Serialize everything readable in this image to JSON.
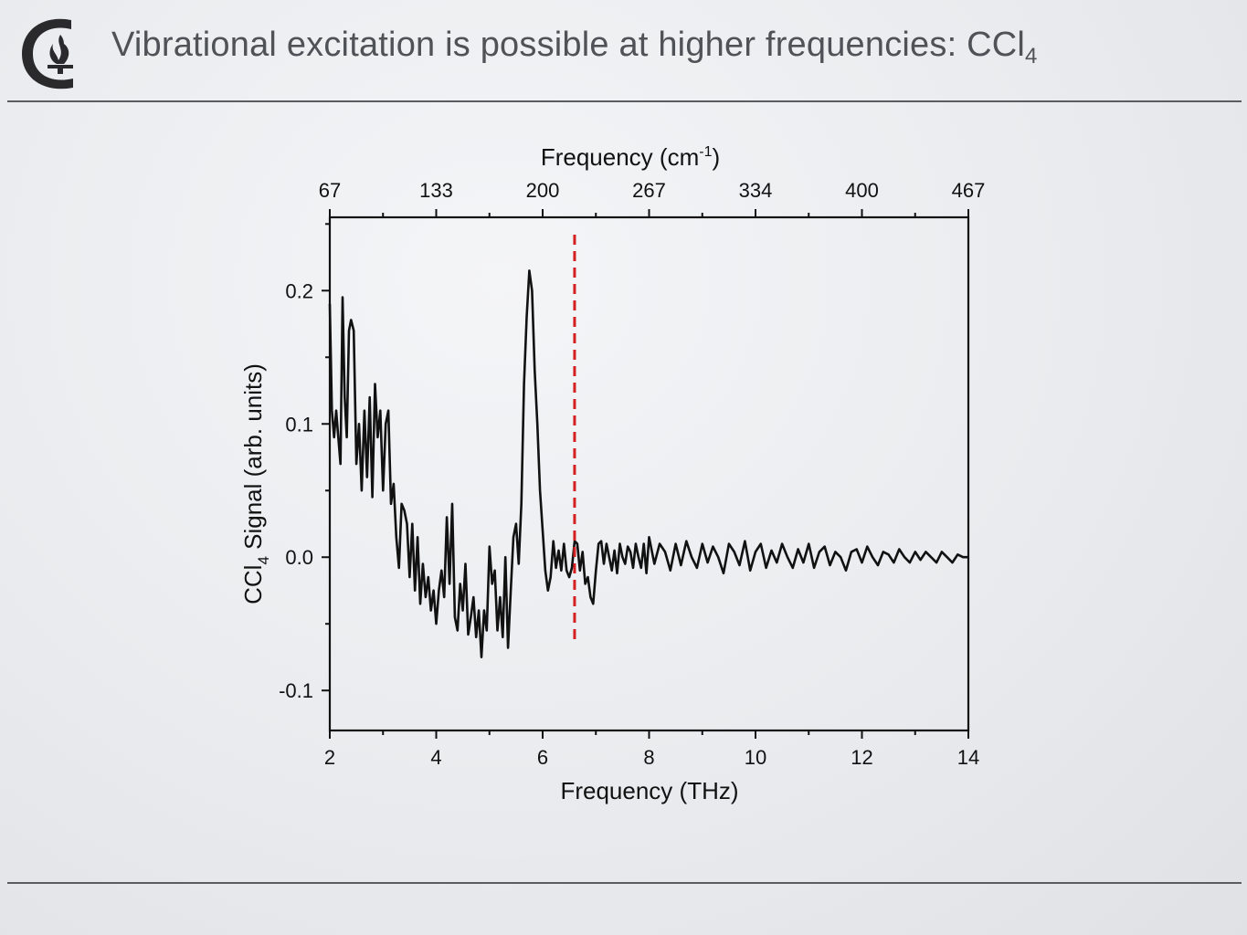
{
  "slide": {
    "title": "Vibrational excitation is possible at higher frequencies: CCl",
    "title_subscript": "4",
    "logo": "caltech-flame-c-logo"
  },
  "colors": {
    "title": "#4f5257",
    "rules": "#5a5c60",
    "signal": "#111111",
    "marker": "#d42020"
  },
  "chart_data": {
    "type": "line",
    "xlabel": "Frequency (THz)",
    "ylabel_parts": [
      "CCl",
      "4",
      " Signal (arb. units)"
    ],
    "top_axis": {
      "label_parts": [
        "Frequency (cm",
        "-1",
        ")"
      ],
      "tick_labels": [
        "67",
        "133",
        "200",
        "267",
        "334",
        "400",
        "467"
      ]
    },
    "xlim": [
      2,
      14
    ],
    "ylim": [
      -0.13,
      0.255
    ],
    "x_ticks": [
      2,
      4,
      6,
      8,
      10,
      12,
      14
    ],
    "x_tick_labels": [
      "2",
      "4",
      "6",
      "8",
      "10",
      "12",
      "14"
    ],
    "y_ticks": [
      -0.1,
      0.0,
      0.1,
      0.2
    ],
    "y_tick_labels": [
      "-0.1",
      "0.0",
      "0.1",
      "0.2"
    ],
    "grid": false,
    "legend": "none",
    "marker_line": {
      "x": 6.6,
      "style": "dashed"
    },
    "series": [
      {
        "x": [
          2.0,
          2.04,
          2.08,
          2.12,
          2.16,
          2.2,
          2.24,
          2.28,
          2.32,
          2.36,
          2.4,
          2.45,
          2.5,
          2.55,
          2.6,
          2.65,
          2.7,
          2.75,
          2.8,
          2.85,
          2.9,
          2.95,
          3.0,
          3.05,
          3.1,
          3.15,
          3.2,
          3.25,
          3.3,
          3.35,
          3.4,
          3.45,
          3.5,
          3.55,
          3.6,
          3.65,
          3.7,
          3.75,
          3.8,
          3.85,
          3.9,
          3.95,
          4.0,
          4.05,
          4.1,
          4.15,
          4.2,
          4.25,
          4.3,
          4.35,
          4.4,
          4.45,
          4.5,
          4.55,
          4.6,
          4.65,
          4.7,
          4.75,
          4.8,
          4.85,
          4.9,
          4.95,
          5.0,
          5.05,
          5.1,
          5.15,
          5.2,
          5.25,
          5.3,
          5.35,
          5.4,
          5.45,
          5.5,
          5.55,
          5.6,
          5.65,
          5.7,
          5.75,
          5.8,
          5.85,
          5.9,
          5.95,
          6.0,
          6.05,
          6.1,
          6.15,
          6.2,
          6.25,
          6.3,
          6.35,
          6.4,
          6.45,
          6.5,
          6.55,
          6.6,
          6.65,
          6.7,
          6.75,
          6.8,
          6.85,
          6.9,
          6.95,
          7.0,
          7.05,
          7.1,
          7.15,
          7.2,
          7.25,
          7.3,
          7.35,
          7.4,
          7.45,
          7.5,
          7.55,
          7.6,
          7.65,
          7.7,
          7.75,
          7.8,
          7.85,
          7.9,
          7.95,
          8.0,
          8.1,
          8.2,
          8.3,
          8.4,
          8.5,
          8.6,
          8.7,
          8.8,
          8.9,
          9.0,
          9.1,
          9.2,
          9.3,
          9.4,
          9.5,
          9.6,
          9.7,
          9.8,
          9.9,
          10.0,
          10.1,
          10.2,
          10.3,
          10.4,
          10.5,
          10.6,
          10.7,
          10.8,
          10.9,
          11.0,
          11.1,
          11.2,
          11.3,
          11.4,
          11.5,
          11.6,
          11.7,
          11.8,
          11.9,
          12.0,
          12.1,
          12.2,
          12.3,
          12.4,
          12.5,
          12.6,
          12.7,
          12.8,
          12.9,
          13.0,
          13.1,
          13.2,
          13.3,
          13.4,
          13.5,
          13.6,
          13.7,
          13.8,
          13.9,
          14.0
        ],
        "y": [
          0.19,
          0.11,
          0.09,
          0.11,
          0.09,
          0.07,
          0.195,
          0.12,
          0.09,
          0.17,
          0.178,
          0.17,
          0.07,
          0.1,
          0.05,
          0.11,
          0.06,
          0.12,
          0.045,
          0.13,
          0.09,
          0.11,
          0.05,
          0.1,
          0.11,
          0.04,
          0.055,
          0.015,
          -0.008,
          0.04,
          0.035,
          0.025,
          -0.015,
          0.025,
          -0.025,
          0.015,
          -0.035,
          -0.005,
          -0.03,
          -0.015,
          -0.04,
          -0.025,
          -0.05,
          -0.025,
          -0.01,
          -0.03,
          0.03,
          -0.02,
          0.04,
          -0.045,
          -0.055,
          -0.02,
          -0.04,
          -0.005,
          -0.058,
          -0.045,
          -0.03,
          -0.06,
          -0.04,
          -0.075,
          -0.04,
          -0.055,
          0.008,
          -0.02,
          -0.01,
          -0.055,
          -0.03,
          -0.06,
          0.0,
          -0.068,
          -0.025,
          0.015,
          0.025,
          -0.005,
          0.04,
          0.13,
          0.18,
          0.215,
          0.2,
          0.14,
          0.1,
          0.05,
          0.02,
          -0.01,
          -0.025,
          -0.015,
          0.012,
          -0.008,
          0.005,
          -0.01,
          0.01,
          -0.01,
          -0.015,
          -0.008,
          0.012,
          0.01,
          -0.01,
          0.004,
          -0.02,
          -0.015,
          -0.03,
          -0.035,
          -0.01,
          0.01,
          0.012,
          -0.005,
          0.01,
          0.0,
          -0.01,
          0.005,
          -0.012,
          0.01,
          0.0,
          -0.005,
          0.008,
          0.004,
          -0.008,
          0.01,
          0.0,
          -0.008,
          0.01,
          -0.012,
          0.015,
          -0.005,
          0.01,
          0.004,
          -0.01,
          0.01,
          -0.006,
          0.012,
          0.0,
          -0.008,
          0.01,
          -0.004,
          0.008,
          0.0,
          -0.012,
          0.01,
          0.004,
          -0.006,
          0.012,
          -0.01,
          0.004,
          0.01,
          -0.008,
          0.005,
          -0.004,
          0.01,
          0.0,
          -0.008,
          0.006,
          -0.004,
          0.01,
          -0.008,
          0.004,
          0.008,
          -0.006,
          0.004,
          0.0,
          -0.01,
          0.004,
          0.006,
          -0.004,
          0.008,
          0.0,
          -0.006,
          0.004,
          0.002,
          -0.004,
          0.006,
          0.0,
          -0.004,
          0.004,
          -0.002,
          0.004,
          0.0,
          -0.004,
          0.004,
          0.0,
          -0.004,
          0.002,
          0.0,
          0.0
        ]
      }
    ]
  }
}
